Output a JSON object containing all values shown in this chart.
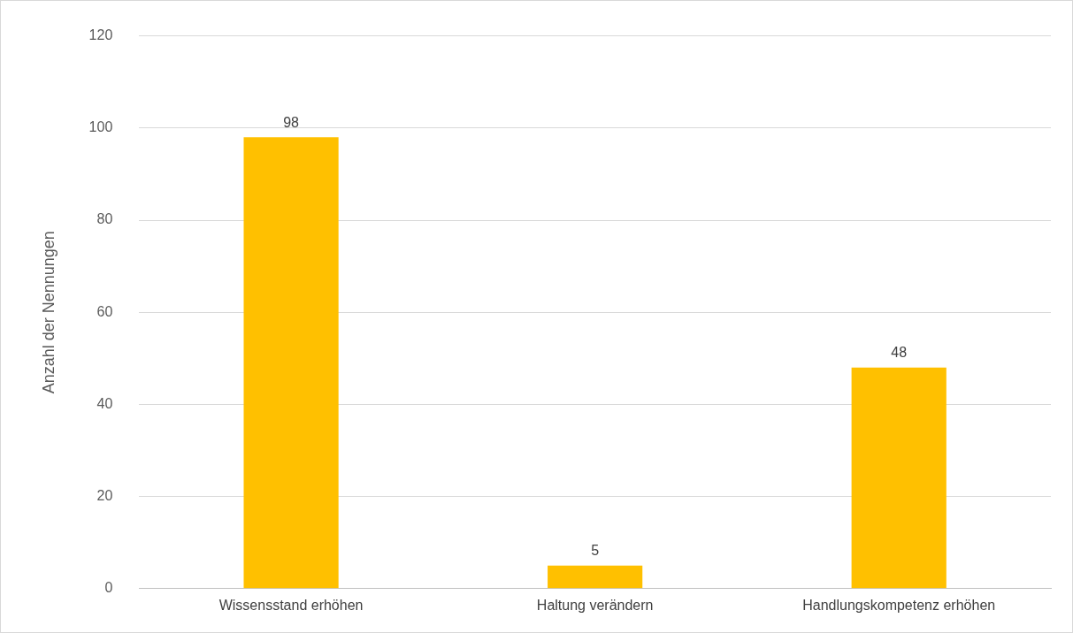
{
  "chart_data": {
    "type": "bar",
    "ylabel": "Anzahl der Nennungen",
    "categories": [
      "Wissensstand erhöhen",
      "Haltung verändern",
      "Handlungskompetenz erhöhen"
    ],
    "values": [
      98,
      5,
      48
    ],
    "color": "#ffc000",
    "ylim": [
      0,
      120
    ],
    "yticks": [
      0,
      20,
      40,
      60,
      80,
      100,
      120
    ],
    "grid": "y",
    "data_labels": true,
    "legend": false
  }
}
